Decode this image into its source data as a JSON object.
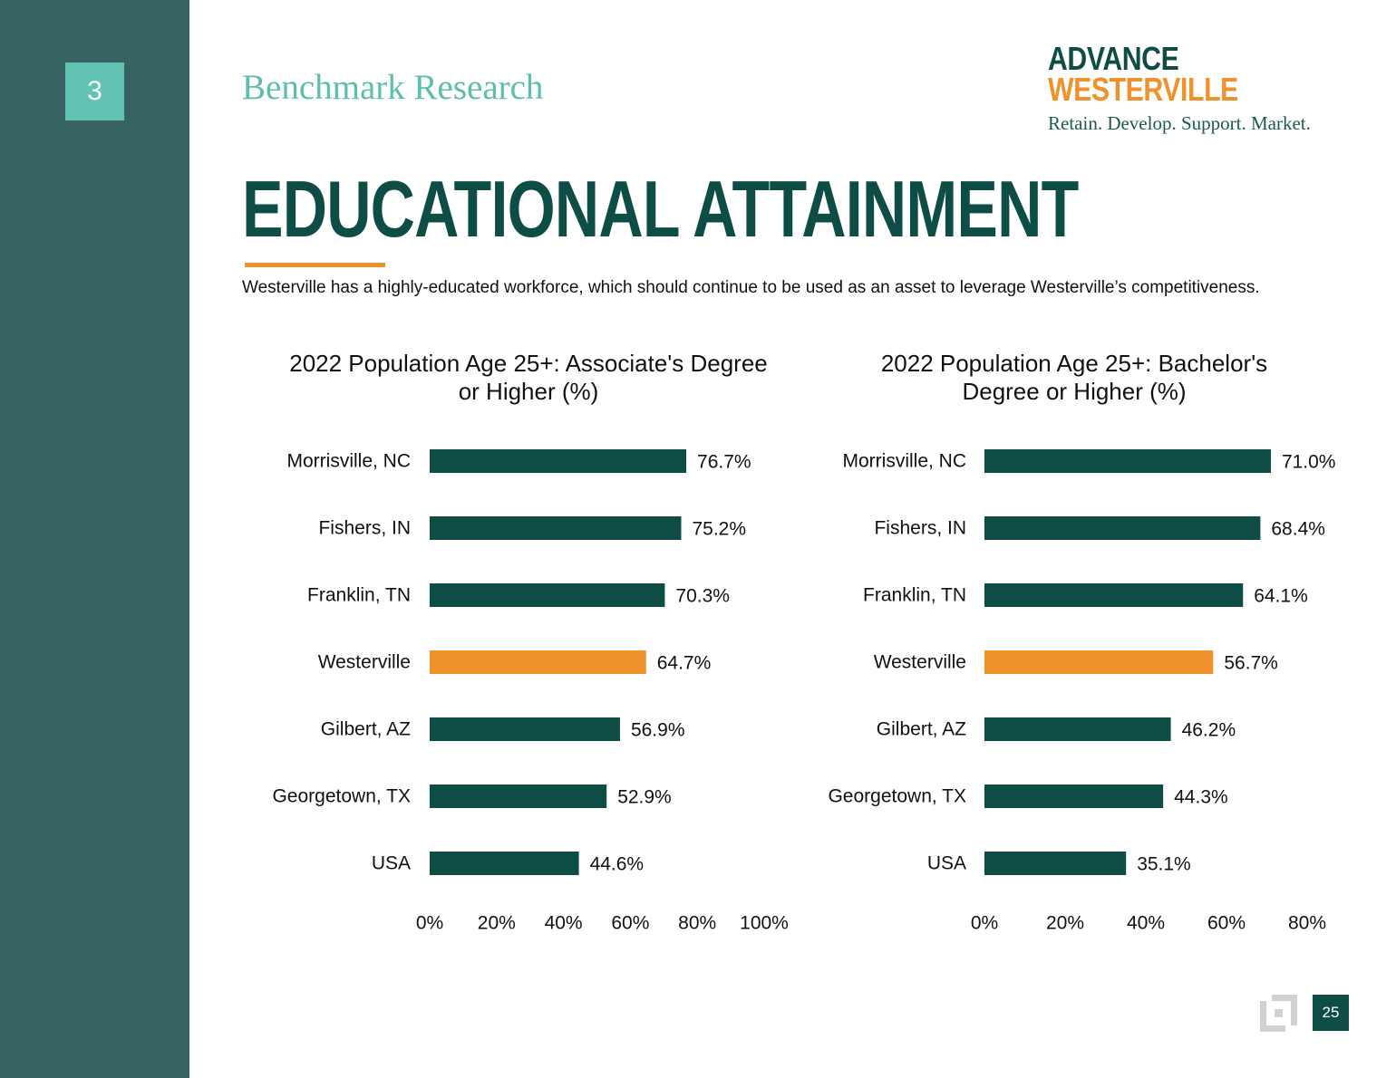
{
  "section": {
    "number": "3",
    "title": "Benchmark Research"
  },
  "logo": {
    "line1": "ADVANCE",
    "line2": "WESTERVILLE",
    "tagline": "Retain. Develop. Support. Market."
  },
  "page": {
    "title": "EDUCATIONAL ATTAINMENT",
    "description": "Westerville has a highly-educated workforce, which should continue to be used as an asset to leverage Westerville’s competitiveness.",
    "number": "25"
  },
  "colors": {
    "primary": "#0e4d45",
    "highlight": "#f0922c",
    "sidebar": "#366361",
    "badge": "#62c3b4"
  },
  "icons": {
    "footer": "bracket-logo-icon"
  },
  "chart_data": [
    {
      "type": "bar",
      "orientation": "horizontal",
      "title": "2022 Population Age 25+: Associate's Degree or Higher (%)",
      "categories": [
        "Morrisville, NC",
        "Fishers, IN",
        "Franklin, TN",
        "Westerville",
        "Gilbert, AZ",
        "Georgetown, TX",
        "USA"
      ],
      "values": [
        76.7,
        75.2,
        70.3,
        64.7,
        56.9,
        52.9,
        44.6
      ],
      "value_labels": [
        "76.7%",
        "75.2%",
        "70.3%",
        "64.7%",
        "56.9%",
        "52.9%",
        "44.6%"
      ],
      "highlight_category": "Westerville",
      "xlim": [
        0,
        100
      ],
      "xticks": [
        0,
        20,
        40,
        60,
        80,
        100
      ],
      "xtick_labels": [
        "0%",
        "20%",
        "40%",
        "60%",
        "80%",
        "100%"
      ],
      "grid": false,
      "legend": "none"
    },
    {
      "type": "bar",
      "orientation": "horizontal",
      "title": "2022 Population Age 25+: Bachelor's Degree or Higher (%)",
      "categories": [
        "Morrisville, NC",
        "Fishers, IN",
        "Franklin, TN",
        "Westerville",
        "Gilbert, AZ",
        "Georgetown, TX",
        "USA"
      ],
      "values": [
        71.0,
        68.4,
        64.1,
        56.7,
        46.2,
        44.3,
        35.1
      ],
      "value_labels": [
        "71.0%",
        "68.4%",
        "64.1%",
        "56.7%",
        "46.2%",
        "44.3%",
        "35.1%"
      ],
      "highlight_category": "Westerville",
      "xlim": [
        0,
        80
      ],
      "xticks": [
        0,
        20,
        40,
        60,
        80
      ],
      "xtick_labels": [
        "0%",
        "20%",
        "40%",
        "60%",
        "80%"
      ],
      "grid": false,
      "legend": "none"
    }
  ]
}
